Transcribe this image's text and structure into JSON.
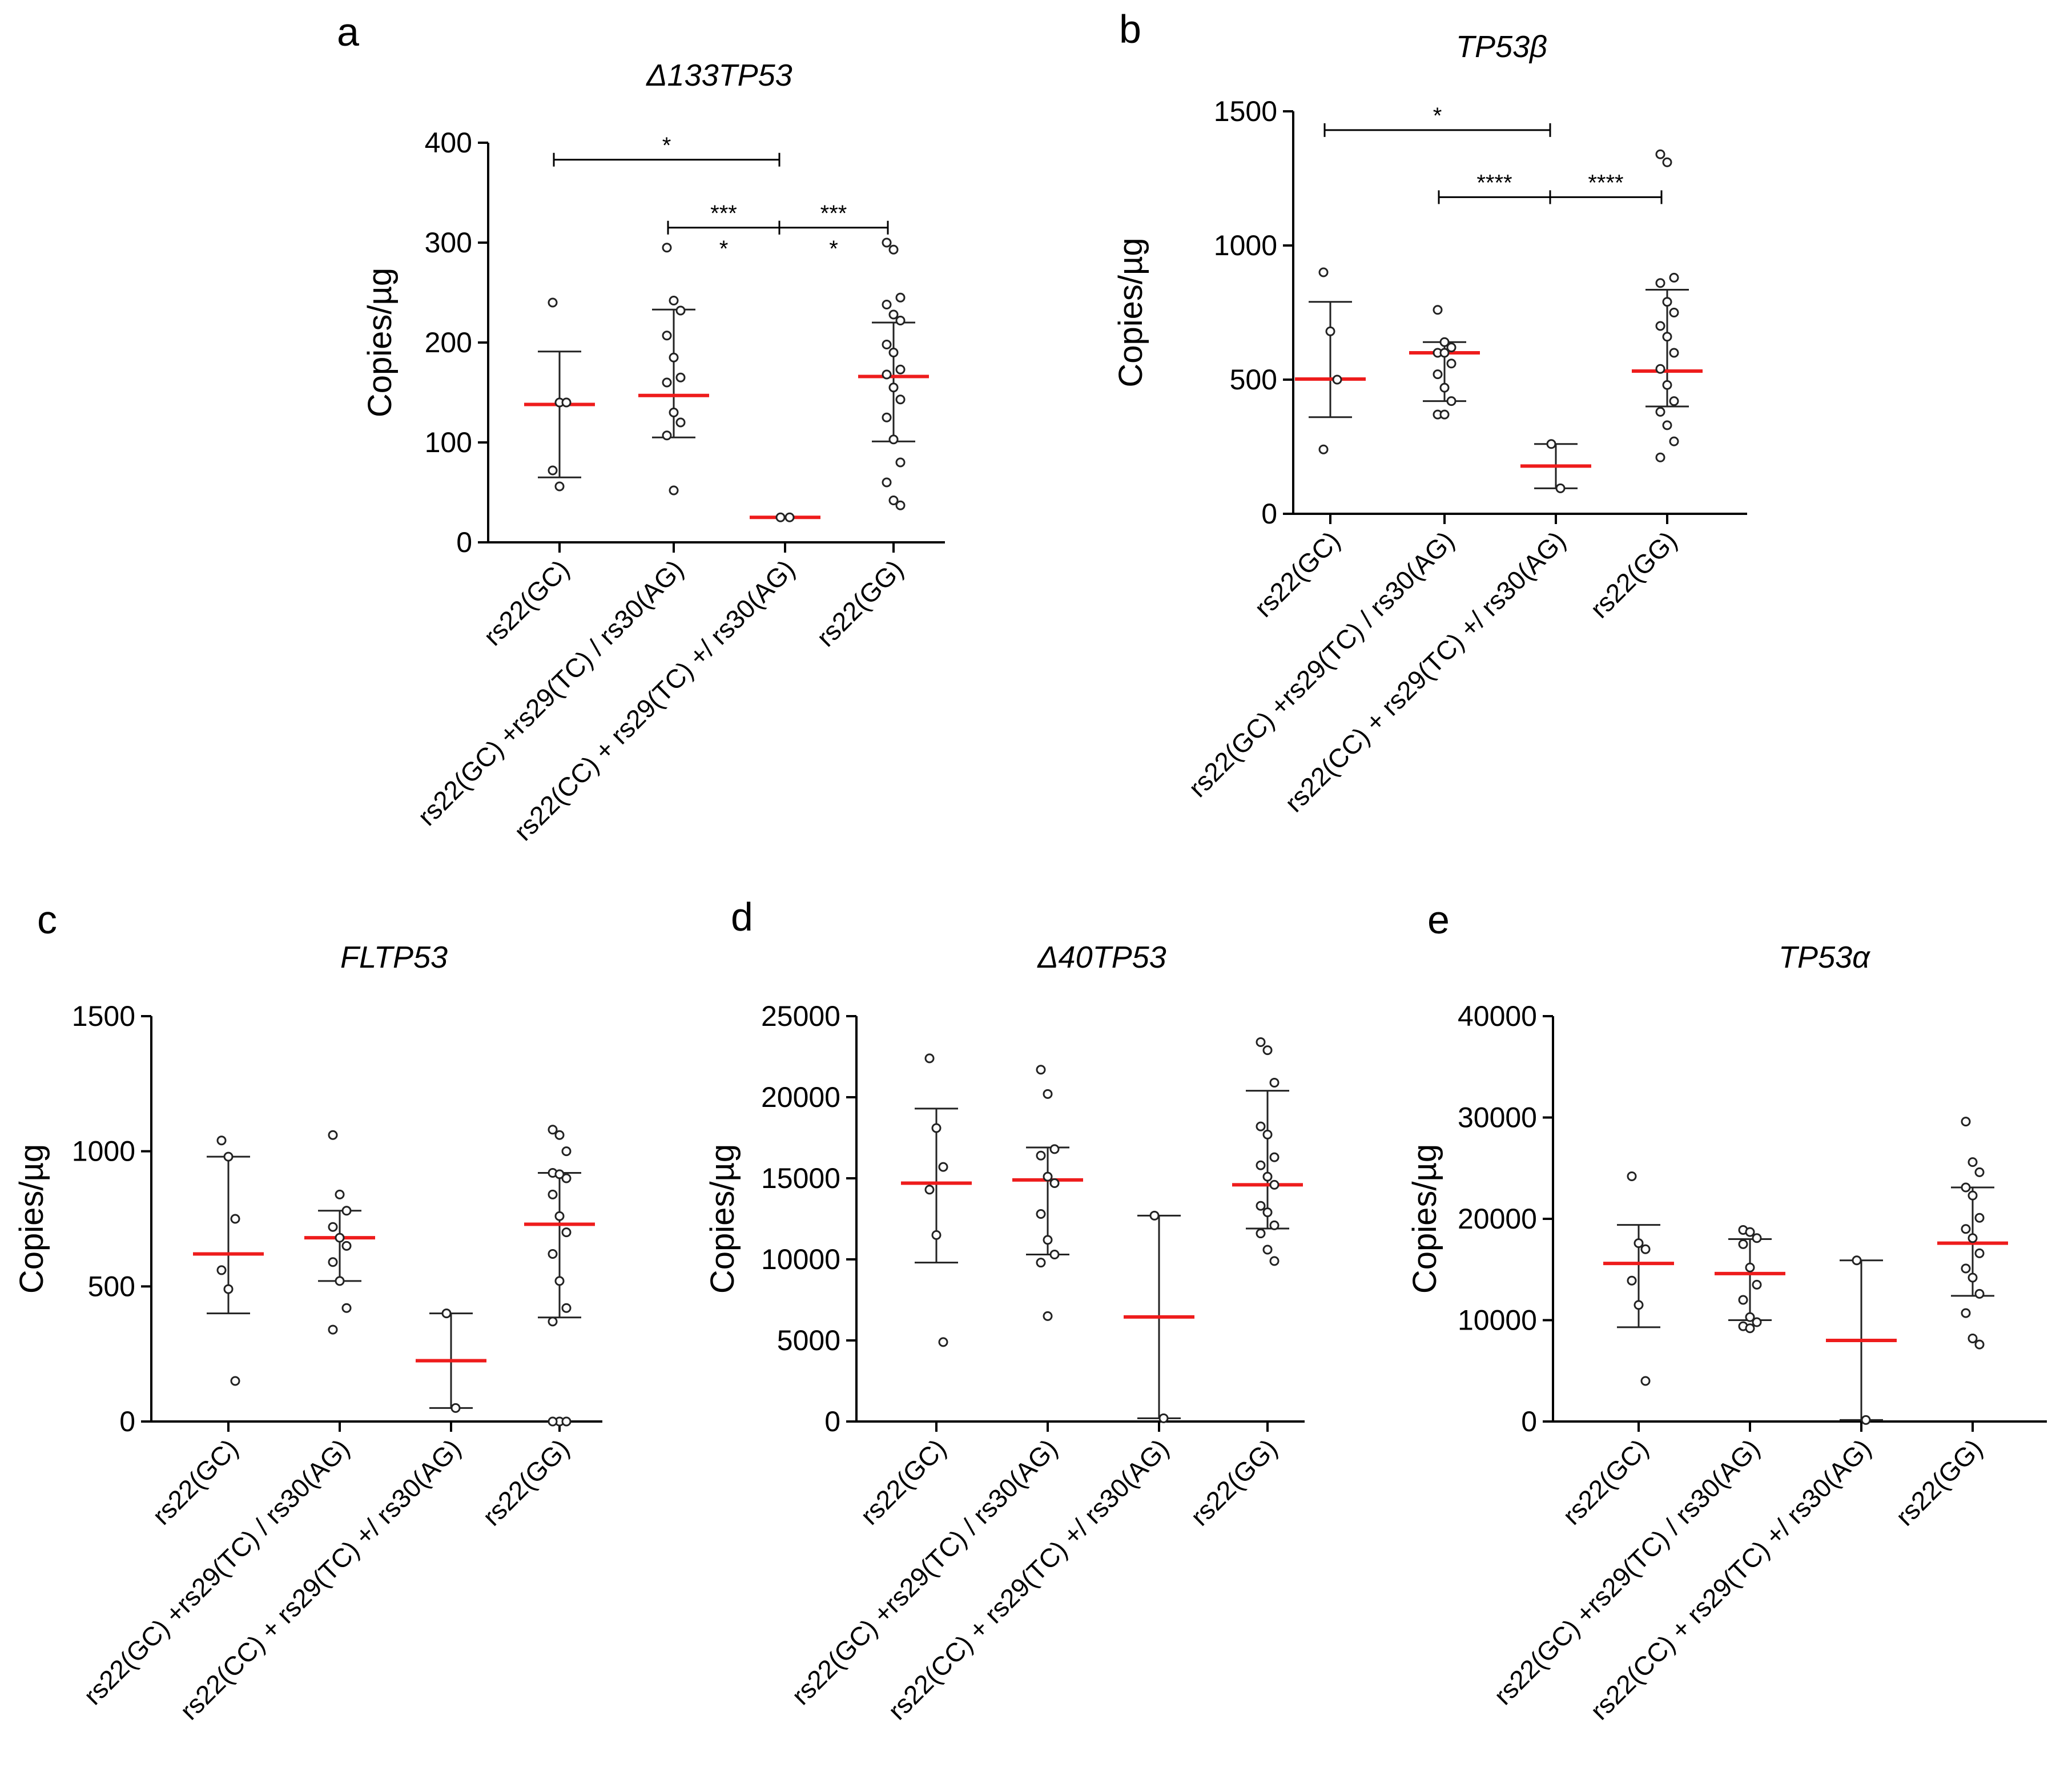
{
  "chart_data": [
    {
      "panel": "a",
      "type": "scatter",
      "title": "Δ133TP53",
      "ylabel": "Copies/µg",
      "ylim": [
        0,
        400
      ],
      "yticks": [
        0,
        100,
        200,
        300,
        400
      ],
      "categories": [
        "rs22(GC)",
        "rs22(GC) +rs29(TC) / rs30(AG)",
        "rs22(CC) + rs29(TC) +/ rs30(AG)",
        "rs22(GG)"
      ],
      "groups": [
        {
          "points": [
            240,
            140,
            140,
            72,
            56
          ],
          "mean": 138,
          "sd_low": 65,
          "sd_high": 191
        },
        {
          "points": [
            295,
            242,
            232,
            207,
            185,
            165,
            160,
            130,
            120,
            107,
            52
          ],
          "mean": 147,
          "sd_low": 105,
          "sd_high": 233
        },
        {
          "points": [
            25,
            25
          ],
          "mean": 25,
          "sd_low": 25,
          "sd_high": 25
        },
        {
          "points": [
            300,
            293,
            245,
            238,
            228,
            222,
            198,
            190,
            173,
            168,
            155,
            143,
            125,
            103,
            80,
            60,
            42,
            37
          ],
          "mean": 166,
          "sd_low": 101,
          "sd_high": 220
        }
      ],
      "significance": [
        {
          "from": 0,
          "to": 2,
          "y": 383,
          "label": "*",
          "label2": ""
        },
        {
          "from": 1,
          "to": 2,
          "y": 315,
          "label": "***",
          "label2": "*"
        },
        {
          "from": 2,
          "to": 3,
          "y": 315,
          "label": "***",
          "label2": "*"
        }
      ]
    },
    {
      "panel": "b",
      "type": "scatter",
      "title": "TP53β",
      "ylabel": "Copies/µg",
      "ylim": [
        0,
        1500
      ],
      "yticks": [
        0,
        500,
        1000,
        1500
      ],
      "categories": [
        "rs22(GC)",
        "rs22(GC) +rs29(TC) / rs30(AG)",
        "rs22(CC) + rs29(TC) +/ rs30(AG)",
        "rs22(GG)"
      ],
      "groups": [
        {
          "points": [
            900,
            680,
            500,
            240
          ],
          "mean": 502,
          "sd_low": 360,
          "sd_high": 790
        },
        {
          "points": [
            760,
            640,
            620,
            600,
            600,
            560,
            520,
            470,
            420,
            370,
            370
          ],
          "mean": 600,
          "sd_low": 420,
          "sd_high": 640
        },
        {
          "points": [
            260,
            95
          ],
          "mean": 178,
          "sd_low": 95,
          "sd_high": 260
        },
        {
          "points": [
            1340,
            1310,
            880,
            860,
            790,
            750,
            700,
            660,
            600,
            540,
            480,
            420,
            380,
            330,
            270,
            210
          ],
          "mean": 532,
          "sd_low": 400,
          "sd_high": 835
        }
      ],
      "significance": [
        {
          "from": 0,
          "to": 2,
          "y": 1430,
          "label": "*",
          "label2": ""
        },
        {
          "from": 1,
          "to": 2,
          "y": 1180,
          "label": "****",
          "label2": ""
        },
        {
          "from": 2,
          "to": 3,
          "y": 1180,
          "label": "****",
          "label2": ""
        }
      ]
    },
    {
      "panel": "c",
      "type": "scatter",
      "title": "FLTP53",
      "ylabel": "Copies/µg",
      "ylim": [
        0,
        1500
      ],
      "yticks": [
        0,
        500,
        1000,
        1500
      ],
      "categories": [
        "rs22(GC)",
        "rs22(GC) +rs29(TC) / rs30(AG)",
        "rs22(CC) + rs29(TC) +/ rs30(AG)",
        "rs22(GG)"
      ],
      "groups": [
        {
          "points": [
            1040,
            980,
            750,
            560,
            490,
            150
          ],
          "mean": 620,
          "sd_low": 400,
          "sd_high": 980
        },
        {
          "points": [
            1060,
            840,
            780,
            720,
            680,
            650,
            590,
            520,
            420,
            340
          ],
          "mean": 680,
          "sd_low": 520,
          "sd_high": 780
        },
        {
          "points": [
            400,
            50
          ],
          "mean": 225,
          "sd_low": 50,
          "sd_high": 400
        },
        {
          "points": [
            1080,
            1060,
            1000,
            920,
            915,
            900,
            840,
            760,
            700,
            620,
            520,
            420,
            370,
            0,
            0,
            0
          ],
          "mean": 730,
          "sd_low": 385,
          "sd_high": 920
        }
      ],
      "significance": []
    },
    {
      "panel": "d",
      "type": "scatter",
      "title": "Δ40TP53",
      "ylabel": "Copies/µg",
      "ylim": [
        0,
        25000
      ],
      "yticks": [
        0,
        5000,
        10000,
        15000,
        20000,
        25000
      ],
      "categories": [
        "rs22(GC)",
        "rs22(GC) +rs29(TC) / rs30(AG)",
        "rs22(CC) + rs29(TC) +/ rs30(AG)",
        "rs22(GG)"
      ],
      "groups": [
        {
          "points": [
            22400,
            18100,
            15700,
            14300,
            11500,
            4900
          ],
          "mean": 14700,
          "sd_low": 9800,
          "sd_high": 19300
        },
        {
          "points": [
            21700,
            20200,
            16800,
            16400,
            15100,
            14700,
            12800,
            11200,
            10300,
            9800,
            6500
          ],
          "mean": 14900,
          "sd_low": 10300,
          "sd_high": 16900
        },
        {
          "points": [
            12700,
            200
          ],
          "mean": 6450,
          "sd_low": 200,
          "sd_high": 12700
        },
        {
          "points": [
            23400,
            22900,
            20900,
            18200,
            17700,
            16300,
            15800,
            15100,
            14600,
            13300,
            12900,
            12100,
            11600,
            10600,
            9900
          ],
          "mean": 14600,
          "sd_low": 11900,
          "sd_high": 20400
        }
      ],
      "significance": []
    },
    {
      "panel": "e",
      "type": "scatter",
      "title": "TP53α",
      "ylabel": "Copies/µg",
      "ylim": [
        0,
        40000
      ],
      "yticks": [
        0,
        10000,
        20000,
        30000,
        40000
      ],
      "categories": [
        "rs22(GC)",
        "rs22(GC) +rs29(TC) / rs30(AG)",
        "rs22(CC) + rs29(TC) +/ rs30(AG)",
        "rs22(GG)"
      ],
      "groups": [
        {
          "points": [
            24200,
            17600,
            17000,
            13900,
            11500,
            4000
          ],
          "mean": 15600,
          "sd_low": 9300,
          "sd_high": 19400
        },
        {
          "points": [
            18900,
            18700,
            18100,
            17500,
            15200,
            13500,
            12000,
            10300,
            9800,
            9400,
            9200
          ],
          "mean": 14600,
          "sd_low": 10000,
          "sd_high": 18000
        },
        {
          "points": [
            15900,
            150
          ],
          "mean": 8000,
          "sd_low": 150,
          "sd_high": 15900
        },
        {
          "points": [
            29600,
            25600,
            24600,
            23100,
            22300,
            20100,
            19000,
            18100,
            16600,
            15100,
            14200,
            12600,
            10700,
            8200,
            7600
          ],
          "mean": 17600,
          "sd_low": 12400,
          "sd_high": 23100
        }
      ],
      "significance": []
    }
  ]
}
